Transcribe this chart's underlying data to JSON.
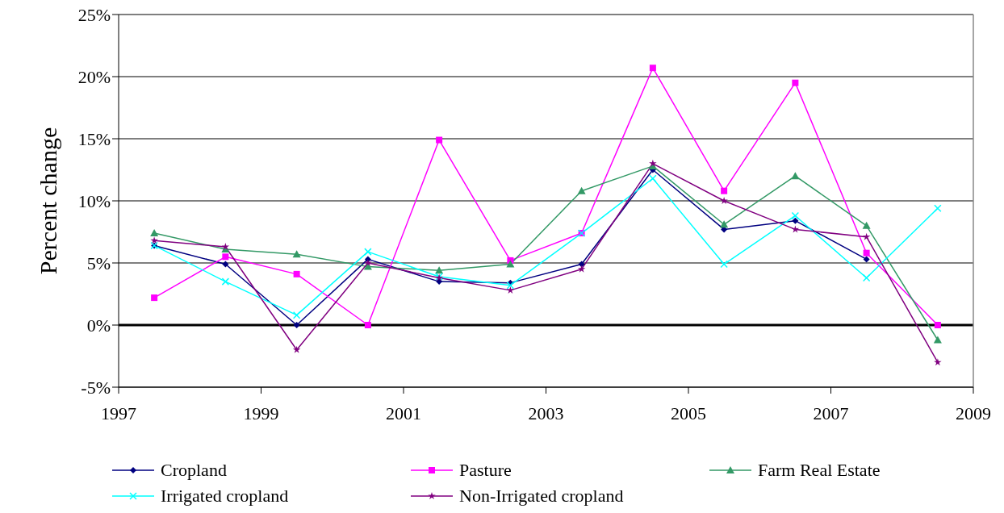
{
  "chart_data": {
    "type": "line",
    "ylabel": "Percent change",
    "x": [
      1997.5,
      1998.5,
      1999.5,
      2000.5,
      2001.5,
      2002.5,
      2003.5,
      2004.5,
      2005.5,
      2006.5,
      2007.5,
      2008.5
    ],
    "xlim": [
      1997,
      2009
    ],
    "xticks": [
      1997,
      1999,
      2001,
      2003,
      2005,
      2007,
      2009
    ],
    "ylim": [
      -5,
      25
    ],
    "yticks": [
      {
        "value": -5,
        "label": "-5%"
      },
      {
        "value": 0,
        "label": "0%"
      },
      {
        "value": 5,
        "label": "5%"
      },
      {
        "value": 10,
        "label": "10%"
      },
      {
        "value": 15,
        "label": "15%"
      },
      {
        "value": 20,
        "label": "20%"
      },
      {
        "value": 25,
        "label": "25%"
      }
    ],
    "grid": "y",
    "legend": "bottom",
    "line_style": "solid",
    "ref_lines": [
      {
        "axis": "y",
        "value": 0,
        "color": "#000000"
      }
    ],
    "series": [
      {
        "name": "Cropland",
        "color": "#000080",
        "marker": "diamond",
        "values": [
          6.4,
          4.9,
          0.0,
          5.3,
          3.5,
          3.4,
          4.9,
          12.5,
          7.7,
          8.4,
          5.3,
          null
        ]
      },
      {
        "name": "Pasture",
        "color": "#ff00ff",
        "marker": "square",
        "values": [
          2.2,
          5.5,
          4.1,
          0.0,
          14.9,
          5.2,
          7.4,
          20.7,
          10.8,
          19.5,
          5.8,
          0.0
        ]
      },
      {
        "name": "Farm Real Estate",
        "color": "#339966",
        "marker": "triangle",
        "values": [
          7.4,
          6.1,
          5.7,
          4.7,
          4.4,
          4.9,
          10.8,
          12.8,
          8.1,
          12.0,
          8.0,
          -1.2
        ]
      },
      {
        "name": "Irrigated cropland",
        "color": "#00ffff",
        "marker": "cross",
        "values": [
          6.4,
          3.5,
          0.8,
          5.9,
          3.9,
          3.2,
          7.4,
          11.8,
          4.9,
          8.8,
          3.8,
          9.4
        ]
      },
      {
        "name": "Non-Irrigated cropland",
        "color": "#800080",
        "marker": "star",
        "values": [
          6.8,
          6.3,
          -2.0,
          5.0,
          3.8,
          2.8,
          4.5,
          13.0,
          10.0,
          7.7,
          7.1,
          -3.0
        ]
      }
    ]
  }
}
